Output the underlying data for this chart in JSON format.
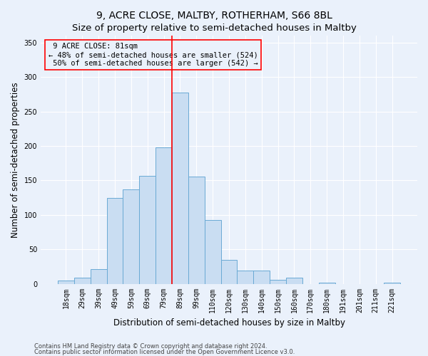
{
  "title": "9, ACRE CLOSE, MALTBY, ROTHERHAM, S66 8BL",
  "subtitle": "Size of property relative to semi-detached houses in Maltby",
  "xlabel": "Distribution of semi-detached houses by size in Maltby",
  "ylabel": "Number of semi-detached properties",
  "bar_labels": [
    "18sqm",
    "29sqm",
    "39sqm",
    "49sqm",
    "59sqm",
    "69sqm",
    "79sqm",
    "89sqm",
    "99sqm",
    "110sqm",
    "120sqm",
    "130sqm",
    "140sqm",
    "150sqm",
    "160sqm",
    "170sqm",
    "180sqm",
    "191sqm",
    "201sqm",
    "211sqm",
    "221sqm"
  ],
  "bar_values": [
    5,
    9,
    21,
    124,
    137,
    157,
    198,
    277,
    155,
    93,
    35,
    19,
    19,
    6,
    9,
    0,
    2,
    0,
    0,
    0,
    2
  ],
  "bar_color": "#c9ddf2",
  "bar_edge_color": "#6aaad4",
  "property_value": 81,
  "redline_x": 6.5,
  "pct_smaller": 48,
  "count_smaller": 524,
  "pct_larger": 50,
  "count_larger": 542,
  "ylim": [
    0,
    360
  ],
  "yticks": [
    0,
    50,
    100,
    150,
    200,
    250,
    300,
    350
  ],
  "footer1": "Contains HM Land Registry data © Crown copyright and database right 2024.",
  "footer2": "Contains public sector information licensed under the Open Government Licence v3.0.",
  "bg_color": "#eaf1fb",
  "grid_color": "#ffffff",
  "title_fontsize": 10,
  "subtitle_fontsize": 9.5,
  "axis_label_fontsize": 8.5,
  "tick_fontsize": 7,
  "annotation_fontsize": 7.5,
  "footer_fontsize": 6
}
